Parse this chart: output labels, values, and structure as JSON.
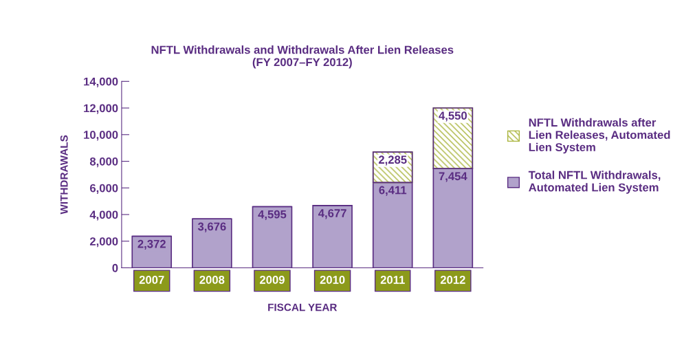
{
  "chart_data": {
    "type": "bar",
    "stacked": true,
    "title": "NFTL Withdrawals and Withdrawals After Lien Releases\n(FY 2007–FY 2012)",
    "xlabel": "FISCAL YEAR",
    "ylabel": "WITHDRAWALS",
    "categories": [
      "2007",
      "2008",
      "2009",
      "2010",
      "2011",
      "2012"
    ],
    "series": [
      {
        "name": "Total NFTL Withdrawals,\nAutomated Lien System",
        "color": "#b1a2cb",
        "values": [
          2372,
          3676,
          4595,
          4677,
          6411,
          7454
        ],
        "value_labels": [
          "2,372",
          "3,676",
          "4,595",
          "4,677",
          "6,411",
          "7,454"
        ]
      },
      {
        "name": "NFTL Withdrawals after\nLien Releases, Automated\nLien System",
        "color": "#a9b43c",
        "values": [
          null,
          null,
          null,
          null,
          2285,
          4550
        ],
        "value_labels": [
          null,
          null,
          null,
          null,
          "2,285",
          "4,550"
        ]
      }
    ],
    "ylim": [
      0,
      14000
    ],
    "yticks": [
      {
        "value": 0,
        "label": "0"
      },
      {
        "value": 2000,
        "label": "2,000"
      },
      {
        "value": 4000,
        "label": "4,000"
      },
      {
        "value": 6000,
        "label": "6,000"
      },
      {
        "value": 8000,
        "label": "8,000"
      },
      {
        "value": 10000,
        "label": "10,000"
      },
      {
        "value": 12000,
        "label": "12,000"
      },
      {
        "value": 14000,
        "label": "14,000"
      }
    ],
    "grid": false,
    "legend": "right"
  }
}
